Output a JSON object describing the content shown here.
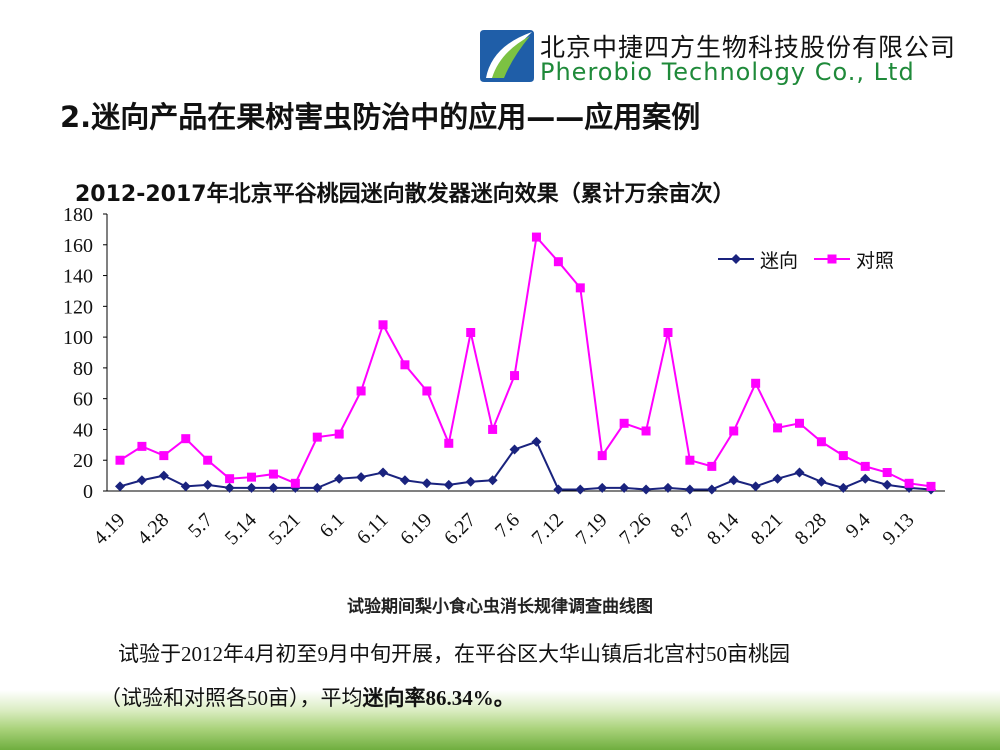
{
  "header": {
    "company_cn": "北京中捷四方生物科技股份有限公司",
    "company_en": "Pherobio Technology Co., Ltd"
  },
  "slide_title": "2.迷向产品在果树害虫防治中的应用——应用案例",
  "chart_data": {
    "type": "line",
    "title": "2012-2017年北京平谷桃园迷向散发器迷向效果（累计万余亩次）",
    "categories": [
      "4.19",
      null,
      "4.28",
      null,
      "5.7",
      null,
      "5.14",
      null,
      "5.21",
      null,
      "6.1",
      null,
      "6.11",
      null,
      "6.19",
      null,
      "6.27",
      null,
      "7.6",
      null,
      "7.12",
      null,
      "7.19",
      null,
      "7.26",
      null,
      "8.7",
      null,
      "8.14",
      null,
      "8.21",
      null,
      "8.28",
      null,
      "9.4",
      null,
      "9.13",
      null
    ],
    "series": [
      {
        "name": "迷向",
        "color": "#1a237e",
        "marker": "diamond",
        "values": [
          3,
          7,
          10,
          3,
          4,
          2,
          2,
          2,
          2,
          2,
          8,
          9,
          12,
          7,
          5,
          4,
          6,
          7,
          27,
          32,
          1,
          1,
          2,
          2,
          1,
          2,
          1,
          1,
          7,
          3,
          8,
          12,
          6,
          2,
          8,
          4,
          2,
          1
        ]
      },
      {
        "name": "对照",
        "color": "#ff00ff",
        "marker": "square",
        "values": [
          20,
          29,
          23,
          34,
          20,
          8,
          9,
          11,
          5,
          35,
          37,
          65,
          108,
          82,
          65,
          31,
          103,
          40,
          75,
          165,
          149,
          132,
          23,
          44,
          39,
          103,
          20,
          16,
          39,
          70,
          41,
          44,
          32,
          23,
          16,
          12,
          5,
          3
        ]
      }
    ],
    "ylim": [
      0,
      180
    ],
    "yticks": [
      0,
      20,
      40,
      60,
      80,
      100,
      120,
      140,
      160,
      180
    ],
    "legend": "top-right",
    "grid": false
  },
  "caption": "试验期间梨小食心虫消长规律调查曲线图",
  "paragraph": {
    "line1": "试验于2012年4月初至9月中旬开展，在平谷区大华山镇后北宫村50亩桃园",
    "line2": "（试验和对照各50亩），平均",
    "line2_bold": "迷向率86.34%。"
  }
}
